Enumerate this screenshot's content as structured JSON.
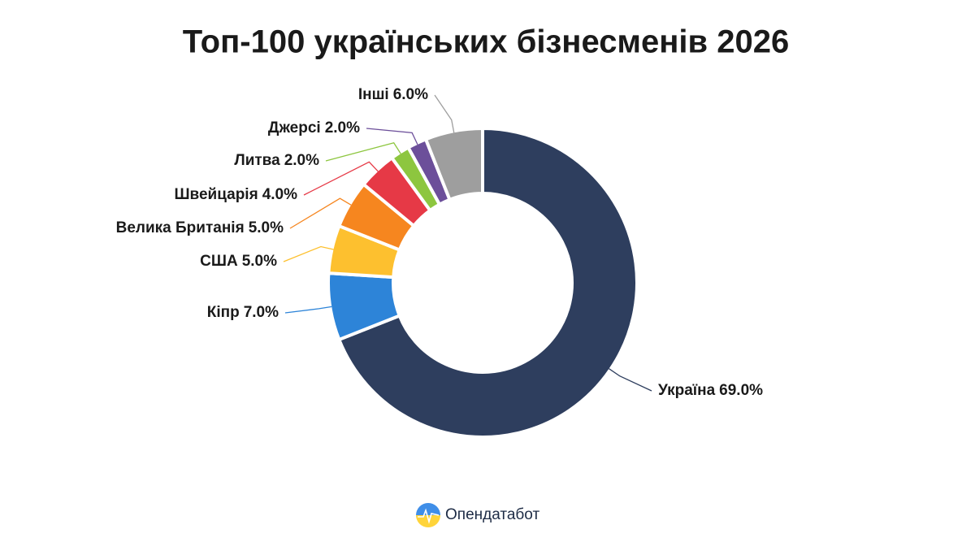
{
  "chart_data": {
    "type": "donut",
    "title": "Топ-100 українських бізнесменів 2026",
    "categories": [
      "Україна",
      "Кіпр",
      "США",
      "Велика Британія",
      "Швейцарія",
      "Литва",
      "Джерсі",
      "Інші"
    ],
    "values": [
      69,
      7,
      5,
      5,
      4,
      2,
      2,
      6
    ],
    "value_labels": [
      "69.0%",
      "7.0%",
      "5.0%",
      "5.0%",
      "4.0%",
      "2.0%",
      "2.0%",
      "6.0%"
    ],
    "colors": [
      "#2e3e5e",
      "#2d84d8",
      "#fdc02f",
      "#f6861f",
      "#e63946",
      "#8dc63f",
      "#6c4f9a",
      "#9e9e9e"
    ],
    "source": "Опендатабот"
  }
}
